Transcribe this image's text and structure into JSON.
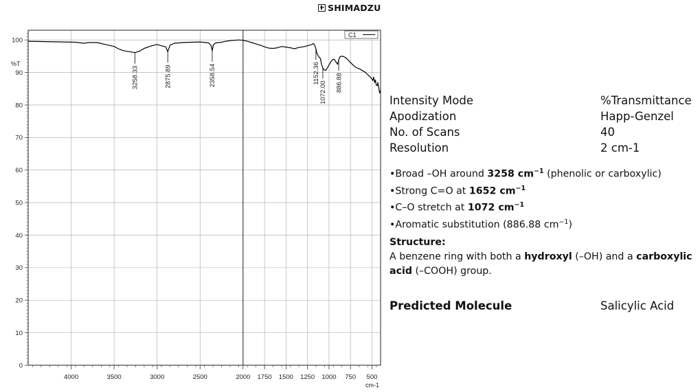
{
  "logo": {
    "text": "SHIMADZU"
  },
  "chart_data": {
    "type": "line",
    "title": "",
    "ylabel": "%T",
    "xlabel": "cm-1",
    "xlim": [
      4500,
      400
    ],
    "ylim": [
      0,
      103
    ],
    "x_ticks": [
      4000,
      3500,
      3000,
      2500,
      2000,
      1750,
      1500,
      1250,
      1000,
      750,
      500
    ],
    "x_tick_labels": [
      "4000",
      "3500",
      "3000",
      "2500",
      "2000",
      "1750",
      "1500",
      "1250",
      "1000",
      "750",
      "500"
    ],
    "y_ticks": [
      0,
      10,
      20,
      30,
      40,
      50,
      60,
      70,
      80,
      90,
      100
    ],
    "y_tick_labels": [
      "0",
      "10",
      "20",
      "30",
      "40",
      "50",
      "60",
      "70",
      "80",
      "90",
      "100"
    ],
    "legend": "C1",
    "series": [
      {
        "name": "C1",
        "x": [
          4500,
          4300,
          4100,
          3950,
          3850,
          3800,
          3700,
          3600,
          3500,
          3450,
          3400,
          3350,
          3300,
          3258,
          3200,
          3150,
          3100,
          3050,
          3000,
          2950,
          2900,
          2876,
          2850,
          2800,
          2700,
          2600,
          2500,
          2400,
          2370,
          2359,
          2345,
          2320,
          2250,
          2200,
          2150,
          2100,
          2050,
          2000,
          1950,
          1900,
          1850,
          1800,
          1750,
          1700,
          1650,
          1600,
          1550,
          1500,
          1450,
          1400,
          1350,
          1300,
          1250,
          1200,
          1180,
          1165,
          1152,
          1140,
          1120,
          1100,
          1085,
          1072,
          1060,
          1040,
          1020,
          1000,
          980,
          960,
          940,
          920,
          900,
          887,
          870,
          850,
          830,
          800,
          780,
          760,
          740,
          720,
          700,
          680,
          660,
          640,
          620,
          600,
          580,
          560,
          540,
          520,
          500,
          490,
          480,
          470,
          460,
          450,
          440,
          430,
          420,
          410,
          400
        ],
        "y": [
          99.6,
          99.5,
          99.4,
          99.3,
          99.0,
          99.2,
          99.2,
          98.6,
          98.0,
          97.3,
          96.8,
          96.5,
          96.3,
          96.1,
          96.6,
          97.4,
          97.9,
          98.3,
          98.6,
          98.2,
          97.9,
          96.4,
          98.4,
          99.0,
          99.2,
          99.3,
          99.4,
          99.1,
          98.2,
          96.7,
          98.5,
          99.1,
          99.3,
          99.6,
          99.8,
          99.9,
          100.0,
          99.9,
          99.6,
          99.2,
          98.8,
          98.4,
          97.9,
          97.5,
          97.4,
          97.6,
          98.0,
          97.8,
          97.6,
          97.3,
          97.7,
          97.9,
          98.2,
          98.6,
          98.9,
          98.3,
          97.3,
          95.8,
          94.9,
          94.3,
          92.3,
          91.5,
          90.9,
          90.6,
          91.4,
          92.3,
          93.2,
          93.9,
          94.1,
          93.3,
          92.5,
          93.9,
          94.9,
          95.0,
          94.9,
          94.4,
          93.9,
          93.3,
          92.8,
          92.3,
          91.8,
          91.5,
          91.2,
          91.1,
          90.7,
          90.4,
          90.1,
          89.6,
          89.1,
          88.6,
          88.0,
          87.5,
          88.6,
          86.9,
          87.7,
          86.2,
          85.9,
          86.9,
          85.1,
          83.7,
          84.5
        ]
      }
    ],
    "peak_labels": [
      {
        "x": 3258.33,
        "y": 96.1,
        "label": "3258.33"
      },
      {
        "x": 2875.89,
        "y": 96.4,
        "label": "2875.89"
      },
      {
        "x": 2358.54,
        "y": 96.7,
        "label": "2358.54"
      },
      {
        "x": 1152.36,
        "y": 97.3,
        "label": "1152.36"
      },
      {
        "x": 1072.0,
        "y": 91.5,
        "label": "1072.00"
      },
      {
        "x": 886.88,
        "y": 93.9,
        "label": "886.88"
      }
    ]
  },
  "params": [
    {
      "label": "Intensity Mode",
      "value": "%Transmittance"
    },
    {
      "label": "Apodization",
      "value": "Happ-Genzel"
    },
    {
      "label": "No. of Scans",
      "value": "40"
    },
    {
      "label": "Resolution",
      "value": "2 cm-1"
    }
  ],
  "bullets": {
    "b1_pre": "•Broad –OH around ",
    "b1_bold": "3258 cm",
    "b1_sup": "−1",
    "b1_post": " (phenolic or carboxylic)",
    "b2_pre": "•Strong C=O at ",
    "b2_bold": "1652 cm",
    "b2_sup": "−1",
    "b3_pre": "•C–O stretch at ",
    "b3_bold": "1072 cm",
    "b3_sup": "−1",
    "b4_pre": "•Aromatic substitution (886.88 cm",
    "b4_sup": "−1",
    "b4_post": ")"
  },
  "structure": {
    "heading": "Structure:",
    "t1": "A benzene ring with both a ",
    "t2": "hydroxyl",
    "t3": " (–OH) and a ",
    "t4": "carboxylic acid",
    "t5": " (–COOH) group."
  },
  "prediction": {
    "label": "Predicted Molecule",
    "value": "Salicylic Acid"
  },
  "colors": {
    "grid": "#a6a6a6",
    "spectrum": "#000000",
    "frame": "#222222"
  }
}
